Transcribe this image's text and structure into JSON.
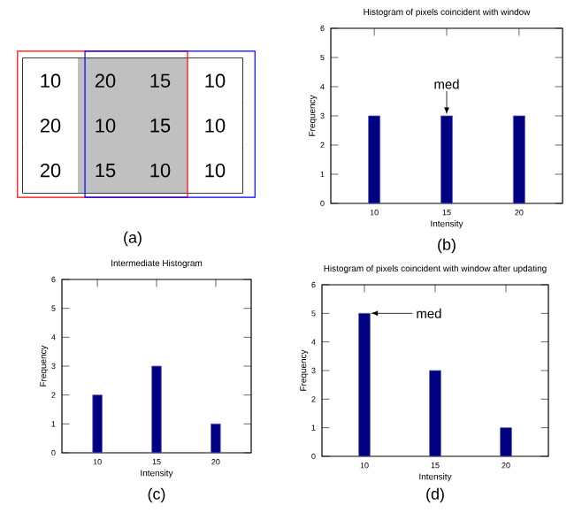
{
  "chart_data": [
    {
      "type": "other",
      "annotations": [
        "10",
        "20",
        "15",
        "10",
        "20",
        "10",
        "15",
        "10",
        "20",
        "15",
        "10",
        "10",
        "(a)"
      ]
    },
    {
      "type": "bar",
      "title": "Histogram of pixels coincident with window",
      "xlabel": "Intensity",
      "ylabel": "Frequency",
      "x": [
        10,
        15,
        20
      ],
      "values": [
        3,
        3,
        3
      ],
      "color": "#000080",
      "xlim": [
        7,
        23
      ],
      "xticks": [
        10,
        15,
        20
      ],
      "ylim": [
        0,
        6
      ],
      "yticks": [
        0,
        1,
        2,
        3,
        4,
        5,
        6
      ],
      "annotations": [
        {
          "text": "med",
          "x": 15,
          "y": 3
        },
        "(b)"
      ]
    },
    {
      "type": "bar",
      "title": "Intermediate Histogram",
      "xlabel": "Intensity",
      "ylabel": "Frequency",
      "x": [
        10,
        15,
        20
      ],
      "values": [
        2,
        3,
        1
      ],
      "color": "#000080",
      "xlim": [
        7,
        23
      ],
      "xticks": [
        10,
        15,
        20
      ],
      "ylim": [
        0,
        6
      ],
      "yticks": [
        0,
        1,
        2,
        3,
        4,
        5,
        6
      ],
      "annotations": [
        "(c)"
      ]
    },
    {
      "type": "bar",
      "title": "Histogram of pixels coincident with window after updating",
      "xlabel": "Intensity",
      "ylabel": "Frequency",
      "x": [
        10,
        15,
        20
      ],
      "values": [
        5,
        3,
        1
      ],
      "color": "#000080",
      "xlim": [
        7,
        23
      ],
      "xticks": [
        10,
        15,
        20
      ],
      "ylim": [
        0,
        6
      ],
      "yticks": [
        0,
        1,
        2,
        3,
        4,
        5,
        6
      ],
      "annotations": [
        {
          "text": "med",
          "x": 10,
          "y": 5
        },
        "(d)"
      ]
    }
  ]
}
